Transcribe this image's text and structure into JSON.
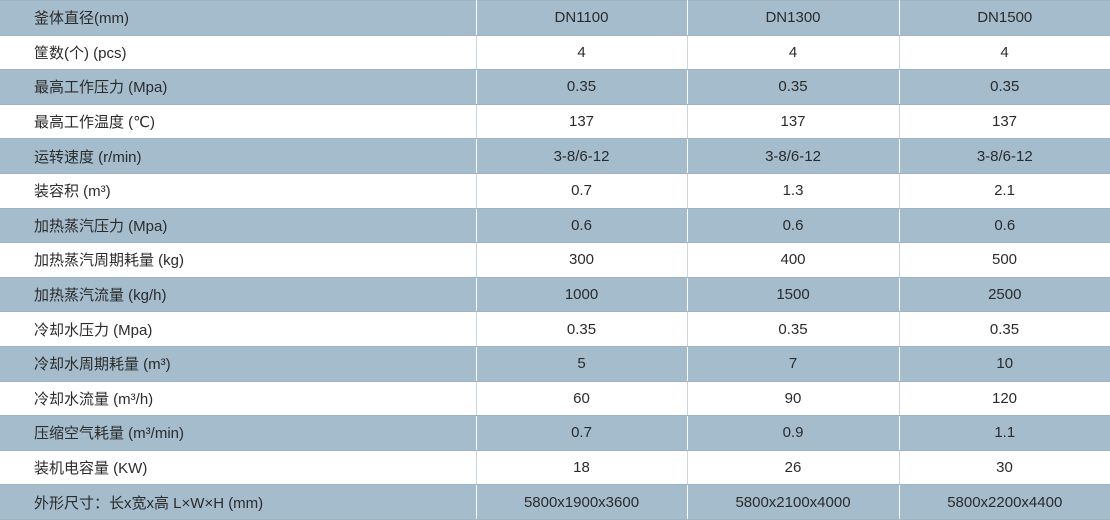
{
  "table": {
    "rows": [
      {
        "label": "釜体直径(mm)",
        "v": [
          "DN1100",
          "DN1300",
          "DN1500"
        ]
      },
      {
        "label": "筐数(个) (pcs)",
        "v": [
          "4",
          "4",
          "4"
        ]
      },
      {
        "label": "最高工作压力 (Mpa)",
        "v": [
          "0.35",
          "0.35",
          "0.35"
        ]
      },
      {
        "label": "最高工作温度 (℃)",
        "v": [
          "137",
          "137",
          "137"
        ]
      },
      {
        "label": "运转速度 (r/min)",
        "v": [
          "3-8/6-12",
          "3-8/6-12",
          "3-8/6-12"
        ]
      },
      {
        "label": "装容积 (m³)",
        "v": [
          "0.7",
          "1.3",
          "2.1"
        ]
      },
      {
        "label": "加热蒸汽压力 (Mpa)",
        "v": [
          "0.6",
          "0.6",
          "0.6"
        ]
      },
      {
        "label": "加热蒸汽周期耗量 (kg)",
        "v": [
          "300",
          "400",
          "500"
        ]
      },
      {
        "label": "加热蒸汽流量 (kg/h)",
        "v": [
          "1000",
          "1500",
          "2500"
        ]
      },
      {
        "label": "冷却水压力 (Mpa)",
        "v": [
          "0.35",
          "0.35",
          "0.35"
        ]
      },
      {
        "label": "冷却水周期耗量 (m³)",
        "v": [
          "5",
          "7",
          "10"
        ]
      },
      {
        "label": "冷却水流量 (m³/h)",
        "v": [
          "60",
          "90",
          "120"
        ]
      },
      {
        "label": "压缩空气耗量 (m³/min)",
        "v": [
          "0.7",
          "0.9",
          "1.1"
        ]
      },
      {
        "label": "装机电容量 (KW)",
        "v": [
          "18",
          "26",
          "30"
        ]
      },
      {
        "label": "外形尺寸：长x宽x高  L×W×H (mm)",
        "v": [
          "5800x1900x3600",
          "5800x2100x4000",
          "5800x2200x4400"
        ]
      }
    ]
  },
  "colors": {
    "shaded_row": "#a5bccc",
    "plain_row": "#ffffff",
    "text": "#2b2b2b"
  }
}
